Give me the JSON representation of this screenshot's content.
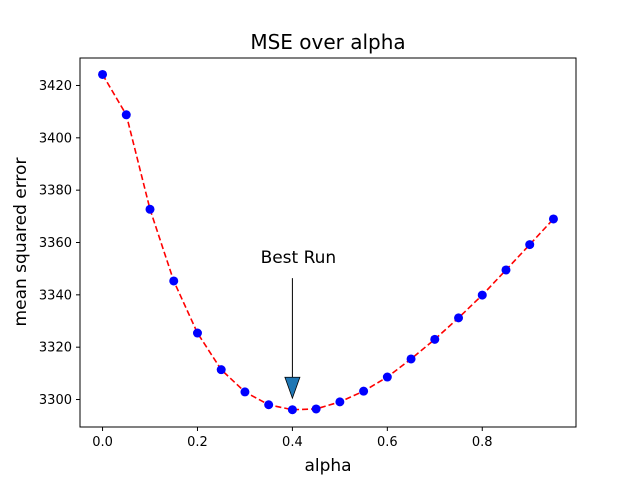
{
  "chart_data": {
    "type": "line",
    "title": "MSE over alpha",
    "xlabel": "alpha",
    "ylabel": "mean squared error",
    "xlim": [
      -0.0475,
      0.9975
    ],
    "ylim": [
      3289.5,
      3430.5
    ],
    "xticks": [
      0.0,
      0.2,
      0.4,
      0.6,
      0.8
    ],
    "xtick_labels": [
      "0.0",
      "0.2",
      "0.4",
      "0.6",
      "0.8"
    ],
    "yticks": [
      3300,
      3320,
      3340,
      3360,
      3380,
      3400,
      3420
    ],
    "ytick_labels": [
      "3300",
      "3320",
      "3340",
      "3360",
      "3380",
      "3400",
      "3420"
    ],
    "grid": false,
    "series": [
      {
        "line_color": "#ff0000",
        "line_style": "dashed",
        "marker_color": "#0000ff",
        "marker": "circle",
        "x": [
          0.0,
          0.05,
          0.1,
          0.15,
          0.2,
          0.25,
          0.3,
          0.35,
          0.4,
          0.45,
          0.5,
          0.55,
          0.6,
          0.65,
          0.7,
          0.75,
          0.8,
          0.85,
          0.9,
          0.95
        ],
        "y": [
          3424.2,
          3408.8,
          3372.7,
          3345.3,
          3325.4,
          3311.4,
          3302.9,
          3298.0,
          3296.1,
          3296.4,
          3299.1,
          3303.2,
          3308.6,
          3315.5,
          3323.0,
          3331.2,
          3339.9,
          3349.5,
          3359.2,
          3369.0
        ]
      }
    ],
    "annotation": {
      "text": "Best Run",
      "point": [
        0.4,
        3300.5
      ],
      "text_position": [
        0.4,
        3346
      ],
      "arrow_color": "#1f77b4"
    }
  }
}
